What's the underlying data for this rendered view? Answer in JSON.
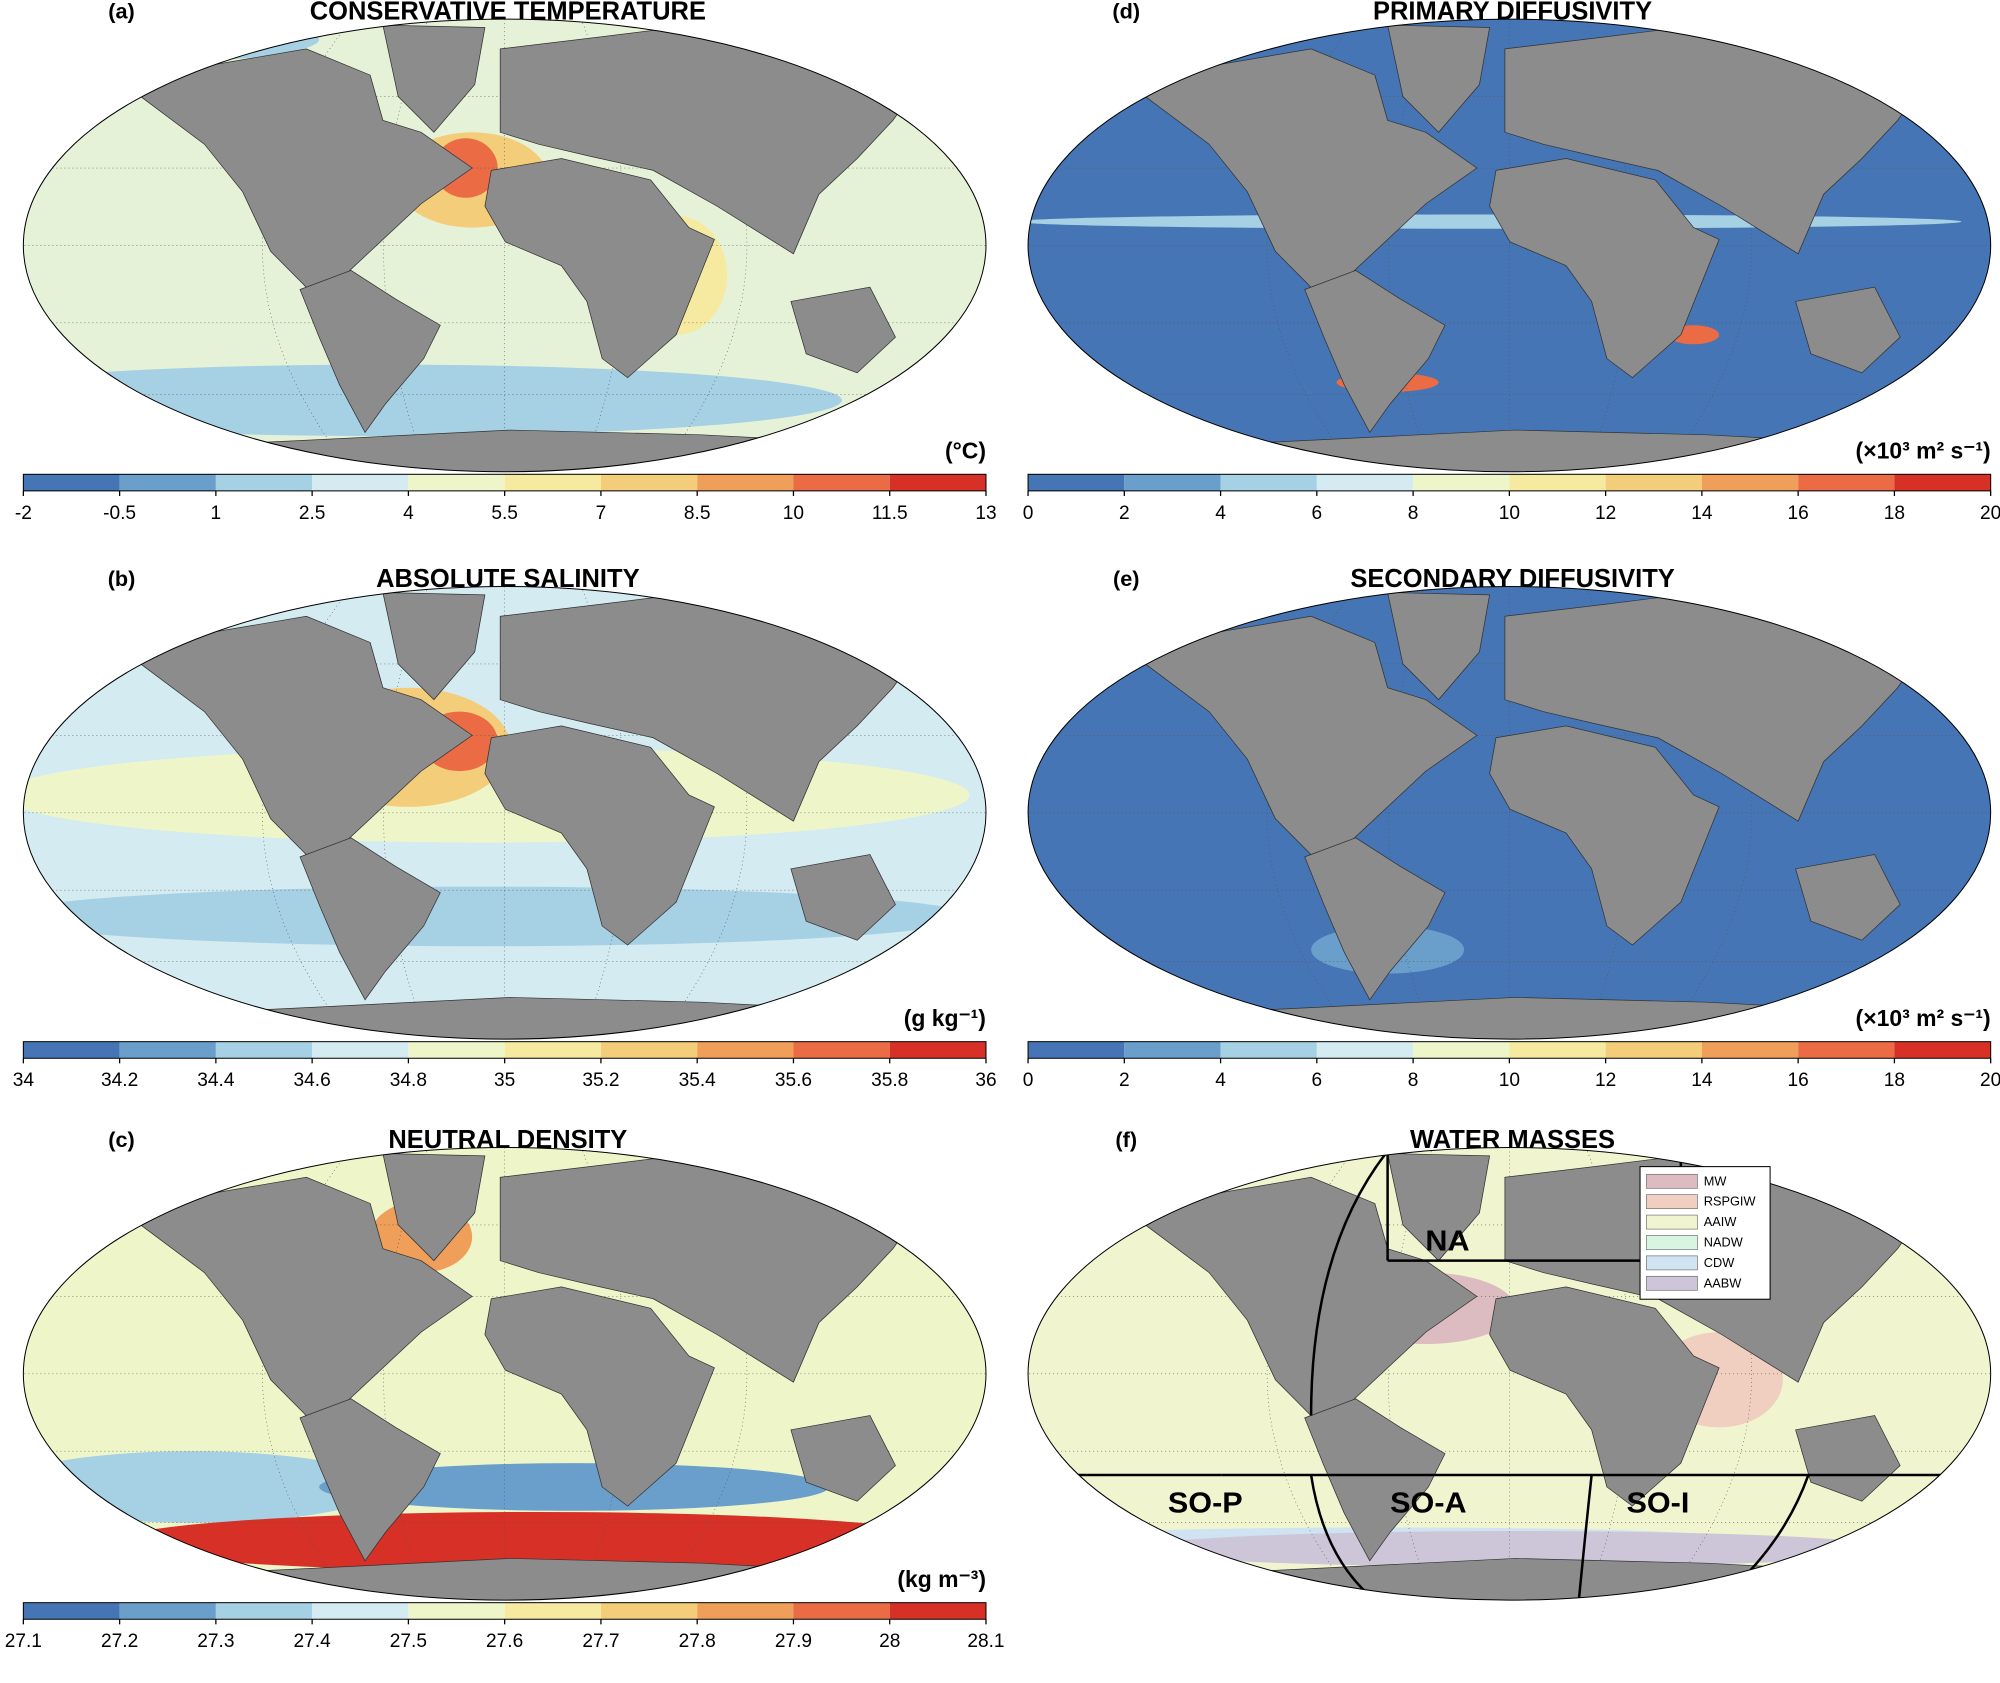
{
  "panels": [
    {
      "label": "(a)",
      "title": "CONSERVATIVE TEMPERATURE",
      "unit": "(°C)",
      "ocean_color": "#e6f2d8",
      "colorbar": {
        "ticks": [
          -2,
          -0.5,
          1,
          2.5,
          4,
          5.5,
          7,
          8.5,
          10,
          11.5,
          13
        ],
        "colors": [
          "#4575b4",
          "#6a9fcb",
          "#a6d0e4",
          "#d4ebf2",
          "#eef6c9",
          "#f5eaa0",
          "#f3cd79",
          "#ef9f5a",
          "#eb6b44",
          "#d73027"
        ]
      }
    },
    {
      "label": "(b)",
      "title": "ABSOLUTE SALINITY",
      "unit": "(g kg⁻¹)",
      "ocean_color": "#d4ebf2",
      "colorbar": {
        "ticks": [
          34,
          34.2,
          34.4,
          34.6,
          34.8,
          35,
          35.2,
          35.4,
          35.6,
          35.8,
          36
        ],
        "colors": [
          "#4575b4",
          "#6a9fcb",
          "#a6d0e4",
          "#d4ebf2",
          "#eef6c9",
          "#f5eaa0",
          "#f3cd79",
          "#ef9f5a",
          "#eb6b44",
          "#d73027"
        ]
      }
    },
    {
      "label": "(c)",
      "title": "NEUTRAL DENSITY",
      "unit": "(kg m⁻³)",
      "ocean_color": "#eef6c9",
      "colorbar": {
        "ticks": [
          27.1,
          27.2,
          27.3,
          27.4,
          27.5,
          27.6,
          27.7,
          27.8,
          27.9,
          28,
          28.1
        ],
        "colors": [
          "#4575b4",
          "#6a9fcb",
          "#a6d0e4",
          "#d4ebf2",
          "#eef6c9",
          "#f5eaa0",
          "#f3cd79",
          "#ef9f5a",
          "#eb6b44",
          "#d73027"
        ]
      }
    },
    {
      "label": "(d)",
      "title": "PRIMARY DIFFUSIVITY",
      "unit": "(×10³ m² s⁻¹)",
      "ocean_color": "#4575b4",
      "colorbar": {
        "ticks": [
          0,
          2,
          4,
          6,
          8,
          10,
          12,
          14,
          16,
          18,
          20
        ],
        "colors": [
          "#4575b4",
          "#6a9fcb",
          "#a6d0e4",
          "#d4ebf2",
          "#eef6c9",
          "#f5eaa0",
          "#f3cd79",
          "#ef9f5a",
          "#eb6b44",
          "#d73027"
        ]
      }
    },
    {
      "label": "(e)",
      "title": "SECONDARY DIFFUSIVITY",
      "unit": "(×10³ m² s⁻¹)",
      "ocean_color": "#4575b4",
      "colorbar": {
        "ticks": [
          0,
          2,
          4,
          6,
          8,
          10,
          12,
          14,
          16,
          18,
          20
        ],
        "colors": [
          "#4575b4",
          "#6a9fcb",
          "#a6d0e4",
          "#d4ebf2",
          "#eef6c9",
          "#f5eaa0",
          "#f3cd79",
          "#ef9f5a",
          "#eb6b44",
          "#d73027"
        ]
      }
    },
    {
      "label": "(f)",
      "title": "WATER MASSES",
      "ocean_color": "#f0f5d0",
      "legend": [
        {
          "name": "MW",
          "color": "#dcbcc0"
        },
        {
          "name": "RSPGIW",
          "color": "#f1cfc0"
        },
        {
          "name": "AAIW",
          "color": "#f0f5d0"
        },
        {
          "name": "NADW",
          "color": "#d8f5e0"
        },
        {
          "name": "CDW",
          "color": "#cfe3f2"
        },
        {
          "name": "AABW",
          "color": "#cdc6d8"
        }
      ],
      "regions": [
        "NA",
        "SO-P",
        "SO-A",
        "SO-I"
      ]
    }
  ]
}
